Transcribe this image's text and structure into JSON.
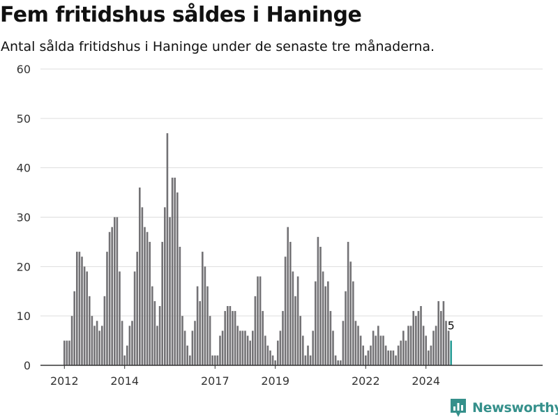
{
  "header": {
    "title": "Fem fritidshus såldes i Haninge",
    "subtitle": "Antal sålda fritidshus i Haninge under de senaste tre månaderna."
  },
  "brand": {
    "name": "Newsworthy",
    "icon": "bar-chart-logo-icon",
    "color": "#35908b"
  },
  "chart_data": {
    "type": "bar",
    "ylim": [
      0,
      60
    ],
    "yticks": [
      0,
      10,
      20,
      30,
      40,
      50,
      60
    ],
    "xticks": [
      {
        "label": "2012",
        "index": 0
      },
      {
        "label": "2014",
        "index": 24
      },
      {
        "label": "2017",
        "index": 60
      },
      {
        "label": "2019",
        "index": 84
      },
      {
        "label": "2022",
        "index": 120
      },
      {
        "label": "2024",
        "index": 144
      }
    ],
    "grid": true,
    "legend": "none",
    "colors": {
      "bar": "#737275",
      "highlight": "#2a9d96",
      "grid": "#dddddd",
      "axis": "#333333"
    },
    "highlight_label": "5",
    "values": [
      5,
      5,
      5,
      10,
      15,
      23,
      23,
      22,
      20,
      19,
      14,
      10,
      8,
      9,
      7,
      8,
      14,
      23,
      27,
      28,
      30,
      30,
      19,
      9,
      2,
      4,
      8,
      9,
      19,
      23,
      36,
      32,
      28,
      27,
      25,
      16,
      13,
      8,
      12,
      25,
      32,
      47,
      30,
      38,
      38,
      35,
      24,
      10,
      7,
      4,
      2,
      7,
      9,
      16,
      13,
      23,
      20,
      16,
      10,
      2,
      2,
      2,
      6,
      7,
      11,
      12,
      12,
      11,
      11,
      8,
      7,
      7,
      7,
      6,
      5,
      7,
      14,
      18,
      18,
      11,
      6,
      4,
      3,
      2,
      1,
      5,
      7,
      11,
      22,
      28,
      25,
      19,
      14,
      18,
      10,
      6,
      2,
      4,
      2,
      7,
      17,
      26,
      24,
      19,
      16,
      17,
      11,
      7,
      2,
      1,
      1,
      9,
      15,
      25,
      21,
      17,
      9,
      8,
      6,
      4,
      2,
      3,
      4,
      7,
      6,
      8,
      6,
      6,
      4,
      3,
      3,
      3,
      2,
      4,
      5,
      7,
      5,
      8,
      8,
      11,
      10,
      11,
      12,
      8,
      6,
      3,
      4,
      7,
      8,
      13,
      11,
      13,
      9,
      7,
      5
    ]
  }
}
